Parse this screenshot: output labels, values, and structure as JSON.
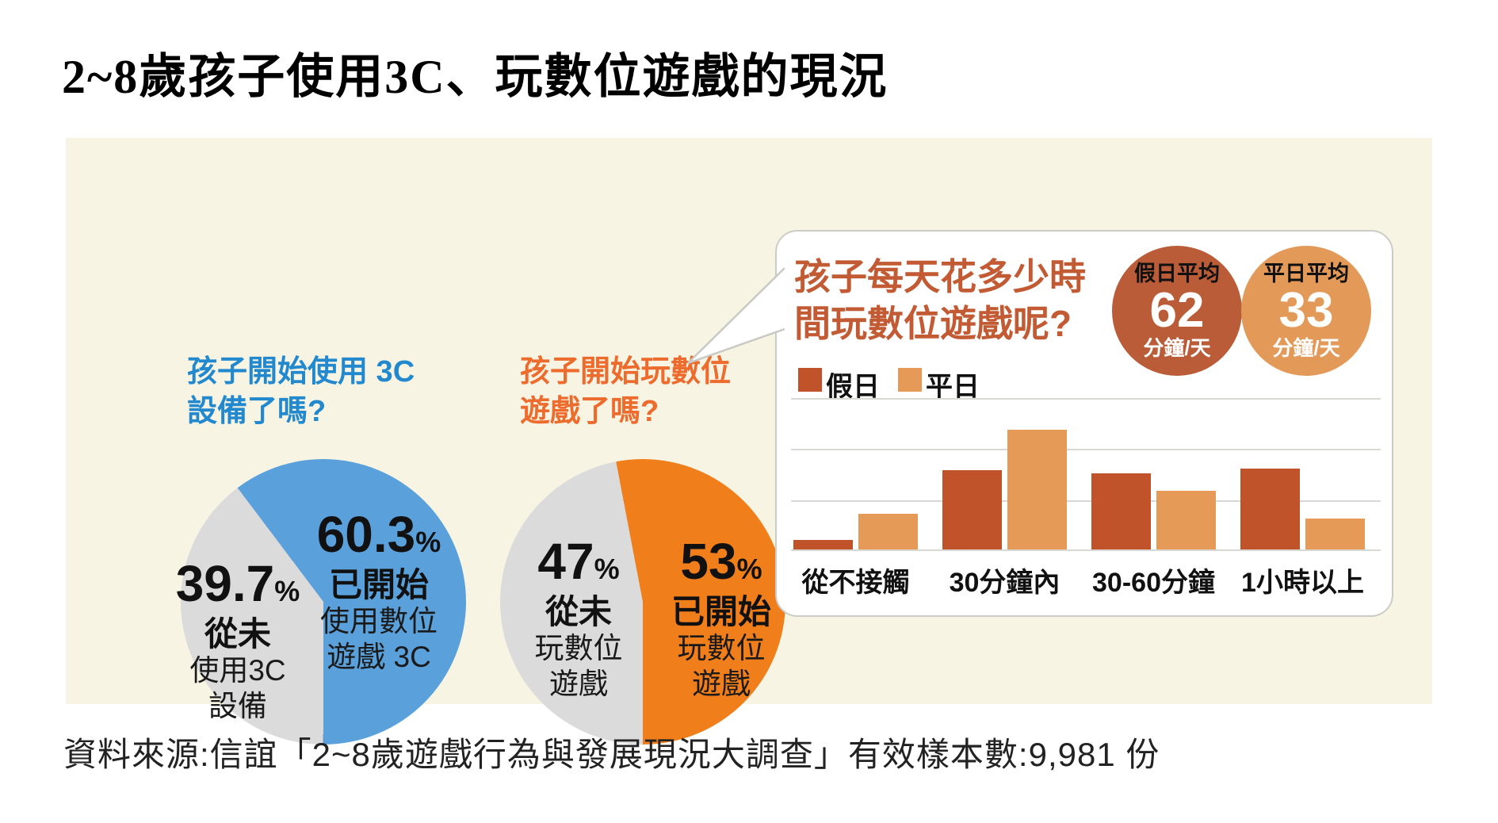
{
  "title": "2~8歲孩子使用3C、玩數位遊戲的現況",
  "source": "資料來源:信誼「2~8歲遊戲行為與發展現況大調查」有效樣本數:9,981 份",
  "colors": {
    "panel_bg": "#F8F4E4",
    "pie_blue": "#5AA1DB",
    "pie_orange": "#F07E1A",
    "pie_gray": "#DBDBDB",
    "holiday_bar": "#C1532B",
    "weekday_bar": "#E69A58",
    "holiday_circle": "#B95C37",
    "weekday_circle": "#E39A59",
    "blue_heading": "#2289CE",
    "orange_heading": "#EC6B2D",
    "card_heading": "#C25B33"
  },
  "pie_3c": {
    "title_line1": "孩子開始使用 3C",
    "title_line2": "設備了嗎?",
    "started": {
      "pct": "60.3",
      "pct_unit": "%",
      "status": "已開始",
      "desc1": "使用數位",
      "desc2": "遊戲 3C"
    },
    "never": {
      "pct": "39.7",
      "pct_unit": "%",
      "status": "從未",
      "desc1": "使用3C",
      "desc2": "設備"
    }
  },
  "pie_game": {
    "title_line1": "孩子開始玩數位",
    "title_line2": "遊戲了嗎?",
    "never": {
      "pct": "47",
      "pct_unit": "%",
      "status": "從未",
      "desc1": "玩數位",
      "desc2": "遊戲"
    },
    "started": {
      "pct": "53",
      "pct_unit": "%",
      "status": "已開始",
      "desc1": "玩數位",
      "desc2": "遊戲"
    }
  },
  "card": {
    "title_line1": "孩子每天花多少時",
    "title_line2": "間玩數位遊戲呢?",
    "circles": [
      {
        "label": "假日平均",
        "value": "62",
        "unit": "分鐘/天"
      },
      {
        "label": "平日平均",
        "value": "33",
        "unit": "分鐘/天"
      }
    ],
    "legend": [
      {
        "label": "假日"
      },
      {
        "label": "平日"
      }
    ]
  },
  "chart_data": [
    {
      "type": "pie",
      "title": "孩子開始使用 3C 設備了嗎?",
      "slices": [
        {
          "label": "已開始 使用數位遊戲 3C",
          "value": 60.3,
          "color": "#5AA1DB"
        },
        {
          "label": "從未 使用3C設備",
          "value": 39.7,
          "color": "#DBDBDB"
        }
      ]
    },
    {
      "type": "pie",
      "title": "孩子開始玩數位遊戲了嗎?",
      "slices": [
        {
          "label": "已開始 玩數位遊戲",
          "value": 53,
          "color": "#F07E1A"
        },
        {
          "label": "從未 玩數位遊戲",
          "value": 47,
          "color": "#DBDBDB"
        }
      ]
    },
    {
      "type": "bar",
      "title": "孩子每天花多少時間玩數位遊戲呢?",
      "categories": [
        "從不接觸",
        "30分鐘內",
        "30-60分鐘",
        "1小時以上"
      ],
      "series": [
        {
          "name": "假日",
          "color": "#C1532B",
          "values": [
            1.9,
            15.9,
            15.2,
            16.2
          ]
        },
        {
          "name": "平日",
          "color": "#E69A58",
          "values": [
            7.2,
            24.0,
            11.7,
            6.2
          ]
        }
      ],
      "ylim": [
        0,
        30
      ],
      "gridline_step": 10,
      "axis_unlabeled": true,
      "legend_position": "top-left",
      "annotations": [
        {
          "label": "假日平均",
          "value": 62,
          "unit": "分鐘/天"
        },
        {
          "label": "平日平均",
          "value": 33,
          "unit": "分鐘/天"
        }
      ]
    }
  ]
}
